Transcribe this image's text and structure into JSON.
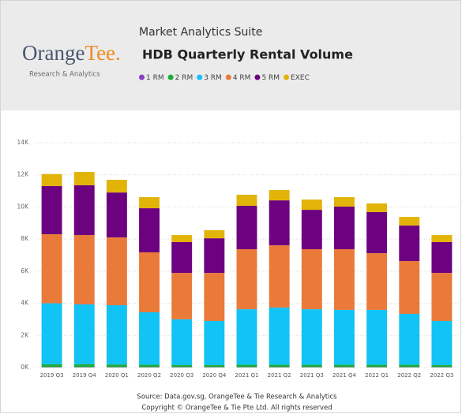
{
  "logo": {
    "name_part1": "Orange",
    "name_part2": "Tee.",
    "tagline": "Research & Analytics"
  },
  "chart_data": {
    "type": "stacked_bar",
    "subtitle": "Market Analytics Suite",
    "title": "HDB Quarterly Rental Volume",
    "categories": [
      "2019 Q3",
      "2019 Q4",
      "2020 Q1",
      "2020 Q2",
      "2020 Q3",
      "2020 Q4",
      "2021 Q1",
      "2021 Q2",
      "2021 Q3",
      "2021 Q4",
      "2022 Q1",
      "2022 Q2",
      "2022 Q3"
    ],
    "series": [
      {
        "name": "1 RM",
        "color": "#8a3fc8",
        "values": [
          20,
          20,
          20,
          20,
          20,
          20,
          20,
          20,
          20,
          20,
          20,
          20,
          20
        ]
      },
      {
        "name": "2 RM",
        "color": "#1fae3c",
        "values": [
          180,
          180,
          170,
          150,
          130,
          130,
          150,
          150,
          150,
          150,
          150,
          150,
          130
        ]
      },
      {
        "name": "3 RM",
        "color": "#12c3f5",
        "values": [
          3800,
          3730,
          3690,
          3270,
          2850,
          2750,
          3460,
          3560,
          3460,
          3420,
          3420,
          3170,
          2750
        ]
      },
      {
        "name": "4 RM",
        "color": "#ea7a3a",
        "values": [
          4300,
          4320,
          4220,
          3730,
          2890,
          2990,
          3740,
          3880,
          3740,
          3780,
          3530,
          3290,
          2990
        ]
      },
      {
        "name": "5 RM",
        "color": "#6c0280",
        "values": [
          3000,
          3100,
          2800,
          2750,
          1920,
          2160,
          2700,
          2800,
          2450,
          2650,
          2560,
          2210,
          1920
        ]
      },
      {
        "name": "EXEC",
        "color": "#e2b409",
        "values": [
          750,
          830,
          790,
          690,
          440,
          500,
          690,
          640,
          640,
          590,
          540,
          540,
          440
        ]
      }
    ],
    "ylim": [
      0,
      14000
    ],
    "yticks": [
      {
        "value": 0,
        "label": "0K"
      },
      {
        "value": 2000,
        "label": "2K"
      },
      {
        "value": 4000,
        "label": "4K"
      },
      {
        "value": 6000,
        "label": "6K"
      },
      {
        "value": 8000,
        "label": "8K"
      },
      {
        "value": 10000,
        "label": "10K"
      },
      {
        "value": 12000,
        "label": "12K"
      },
      {
        "value": 14000,
        "label": "14K"
      }
    ],
    "grid": true,
    "source": "Source: Data.gov.sg, OrangeTee & Tie Research & Analytics",
    "copyright": "Copyright © OrangeTee & Tie Pte Ltd. All rights reserved"
  }
}
